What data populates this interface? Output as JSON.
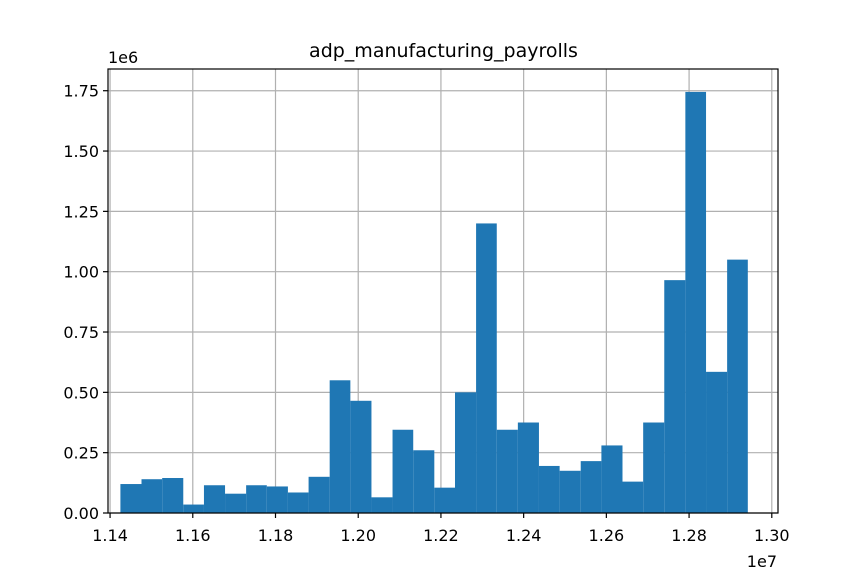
{
  "chart_data": {
    "type": "bar",
    "title": "adp_manufacturing_payrolls",
    "xlabel": "",
    "ylabel": "",
    "x_offset_label": "1e7",
    "y_offset_label": "1e6",
    "xlim": [
      1.1395,
      1.3015
    ],
    "ylim": [
      0,
      1.84
    ],
    "x_ticks": [
      1.14,
      1.16,
      1.18,
      1.2,
      1.22,
      1.24,
      1.26,
      1.28,
      1.3
    ],
    "x_tick_labels": [
      "1.14",
      "1.16",
      "1.18",
      "1.20",
      "1.22",
      "1.24",
      "1.26",
      "1.28",
      "1.30"
    ],
    "y_ticks": [
      0,
      0.25,
      0.5,
      0.75,
      1.0,
      1.25,
      1.5,
      1.75
    ],
    "y_tick_labels": [
      "0.00",
      "0.25",
      "0.50",
      "0.75",
      "1.00",
      "1.25",
      "1.50",
      "1.75"
    ],
    "grid": true,
    "bar_color": "#1f77b4",
    "bins": [
      {
        "x0": 1.1425,
        "x1": 1.1476,
        "value": 0.12
      },
      {
        "x0": 1.1476,
        "x1": 1.1526,
        "value": 0.14
      },
      {
        "x0": 1.1526,
        "x1": 1.1577,
        "value": 0.145
      },
      {
        "x0": 1.1577,
        "x1": 1.1627,
        "value": 0.035
      },
      {
        "x0": 1.1627,
        "x1": 1.1678,
        "value": 0.115
      },
      {
        "x0": 1.1678,
        "x1": 1.1729,
        "value": 0.08
      },
      {
        "x0": 1.1729,
        "x1": 1.1779,
        "value": 0.115
      },
      {
        "x0": 1.1779,
        "x1": 1.183,
        "value": 0.11
      },
      {
        "x0": 1.183,
        "x1": 1.188,
        "value": 0.085
      },
      {
        "x0": 1.188,
        "x1": 1.1931,
        "value": 0.15
      },
      {
        "x0": 1.1931,
        "x1": 1.1981,
        "value": 0.55
      },
      {
        "x0": 1.1981,
        "x1": 1.2032,
        "value": 0.465
      },
      {
        "x0": 1.2032,
        "x1": 1.2083,
        "value": 0.065
      },
      {
        "x0": 1.2083,
        "x1": 1.2133,
        "value": 0.345
      },
      {
        "x0": 1.2133,
        "x1": 1.2184,
        "value": 0.26
      },
      {
        "x0": 1.2184,
        "x1": 1.2234,
        "value": 0.105
      },
      {
        "x0": 1.2234,
        "x1": 1.2285,
        "value": 0.5
      },
      {
        "x0": 1.2285,
        "x1": 1.2335,
        "value": 1.2
      },
      {
        "x0": 1.2335,
        "x1": 1.2386,
        "value": 0.345
      },
      {
        "x0": 1.2386,
        "x1": 1.2437,
        "value": 0.375
      },
      {
        "x0": 1.2437,
        "x1": 1.2487,
        "value": 0.195
      },
      {
        "x0": 1.2487,
        "x1": 1.2538,
        "value": 0.175
      },
      {
        "x0": 1.2538,
        "x1": 1.2588,
        "value": 0.215
      },
      {
        "x0": 1.2588,
        "x1": 1.2639,
        "value": 0.28
      },
      {
        "x0": 1.2639,
        "x1": 1.2689,
        "value": 0.13
      },
      {
        "x0": 1.2689,
        "x1": 1.274,
        "value": 0.375
      },
      {
        "x0": 1.274,
        "x1": 1.2791,
        "value": 0.965
      },
      {
        "x0": 1.2791,
        "x1": 1.2841,
        "value": 1.745
      },
      {
        "x0": 1.2841,
        "x1": 1.2892,
        "value": 0.585
      },
      {
        "x0": 1.2892,
        "x1": 1.2942,
        "value": 1.05
      }
    ]
  }
}
